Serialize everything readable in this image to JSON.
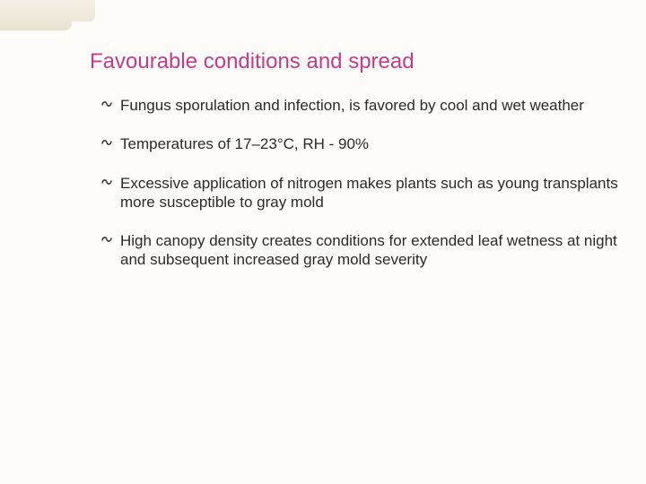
{
  "slide": {
    "title": "Favourable conditions and spread",
    "title_color": "#c73b8a",
    "title_fontsize": 24,
    "body_fontsize": 17,
    "text_color": "#2a2a2a",
    "background_color": "#fdfcf8",
    "bullet_glyph": "⸽",
    "bullets": [
      "Fungus sporulation and infection, is favored by cool and wet weather",
      "Temperatures of 17–23°C, RH - 90%",
      "Excessive application of nitrogen makes plants such as young transplants more susceptible to gray mold",
      "High canopy density creates conditions for extended leaf wetness at night and subsequent increased gray mold severity"
    ]
  },
  "decoration": {
    "corner_bar_color_top": "#f5f0e5",
    "corner_bar_color_bottom": "#e8e2d2"
  }
}
